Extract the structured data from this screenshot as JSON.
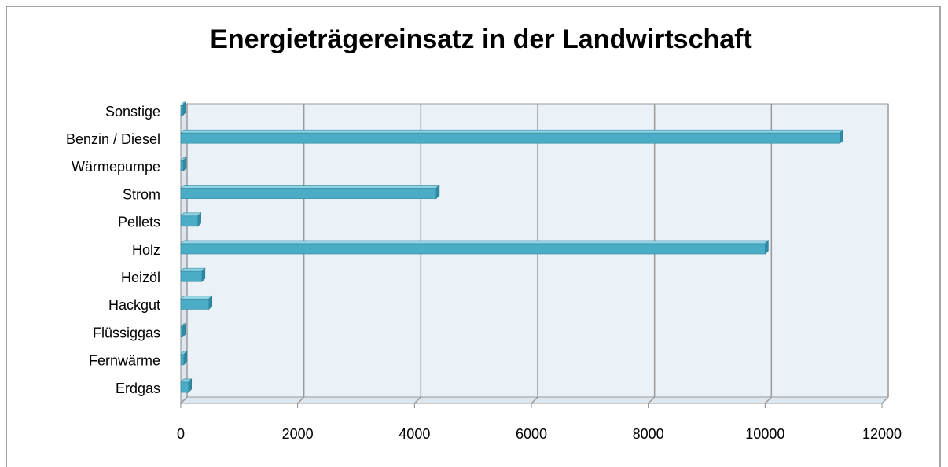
{
  "chart_data": {
    "type": "bar",
    "orientation": "horizontal",
    "title": "Energieträgereinsatz in der Landwirtschaft",
    "categories": [
      "Erdgas",
      "Fernwärme",
      "Flüssiggas",
      "Hackgut",
      "Heizöl",
      "Holz",
      "Pellets",
      "Strom",
      "Wärmepumpe",
      "Benzin / Diesel",
      "Sonstige"
    ],
    "values": [
      130,
      50,
      30,
      480,
      360,
      10000,
      290,
      4370,
      40,
      11280,
      30
    ],
    "color": "#4bacc6",
    "xlim": [
      0,
      12000
    ],
    "xticks": [
      0,
      2000,
      4000,
      6000,
      8000,
      10000,
      12000
    ],
    "grid": true
  }
}
